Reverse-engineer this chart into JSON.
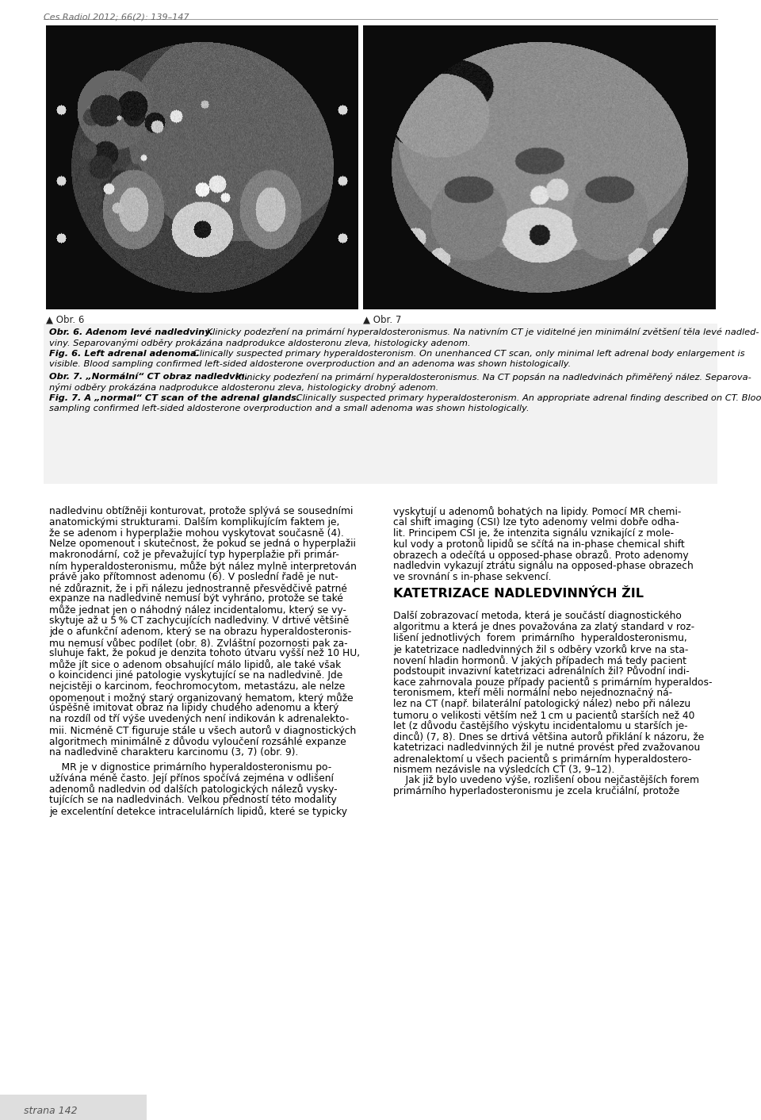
{
  "page_bg": "#ffffff",
  "header_text": "Ces Radiol 2012; 66(2): 139–147",
  "header_color": "#555555",
  "figure_left_label": "▲ Obr. 6",
  "figure_right_label": "▲ Obr. 7",
  "caption_bg": "#f2f2f2",
  "body_left_col": [
    "nadledvinu obtížněji konturovat, protože splývá se sousedními",
    "anatomickými strukturami. Dalším komplikujícím faktem je,",
    "že se adenom i hyperplažie mohou vyskytovat současně (4).",
    "Nelze opomenout i skutečnost, že pokud se jedná o hyperplažii",
    "makronodární, což je převažující typ hyperplažie při primár-",
    "ním hyperaldosteronismu, může být nález mylně interpretován",
    "právě jako přítomnost adenomu (6). V poslední řadě je nut-",
    "né zdůraznit, že i při nálezu jednostranně přesvědčivě patrné",
    "expanze na nadledvině nemusí být vyhráno, protože se také",
    "může jednat jen o náhodný nález incidentalomu, který se vy-",
    "skytuje až u 5 % CT zachycujících nadledviny. V drtivé většině",
    "jde o afunkční adenom, který se na obrazu hyperaldosteronis-",
    "mu nemusí vůbec podílet (obr. 8). Zvláštní pozornosti pak za-",
    "sluhuje fakt, že pokud je denzita tohoto útvaru vyšší než 10 HU,",
    "může jít sice o adenom obsahující málo lipidů, ale také však",
    "o koincidenci jiné patologie vyskytující se na nadledvině. Jde",
    "nejcistěji o karcinom, feochromocytom, metastázu, ale nelze",
    "opomenout i možný starý organizovaný hematom, který může",
    "úspěšně imitovat obraz na lipidy chudého adenomu a který",
    "na rozdíl od tří výše uvedených není indikován k adrenalekto-",
    "mii. Nicméně CT figuruje stále u všech autorů v diagnostických",
    "algoritmech minimálně z důvodu vyloučení rozsáhlé expanze",
    "na nadledvině charakteru karcinomu (3, 7) (obr. 9).",
    "",
    "    MR je v dignostice primárního hyperaldosteronismu po-",
    "užívána méně často. Její přínos spočívá zejména v odlišení",
    "adenomů nadledvin od dalších patologických nálezů vysky-",
    "tujících se na nadledvinách. Velkou předností této modality",
    "je excelentíní detekce intracelulárních lipidů, které se typicky"
  ],
  "body_right_col": [
    "vyskytují u adenomů bohatých na lipidy. Pomocí MR chemi-",
    "cal shift imaging (CSI) lze tyto adenomy velmi dobře odha-",
    "lit. Principem CSI je, že intenzita signálu vznikající z mole-",
    "kul vody a protonů lipidů se sčítá na in-phase chemical shift",
    "obrazech a odečítá u opposed-phase obrazů. Proto adenomy",
    "nadledvin vykazují ztrátu signálu na opposed-phase obrazech",
    "ve srovnání s in-phase sekvencí.",
    "",
    "KATETRIZACE NADLEDVINNÝCH ŽIL",
    "",
    "Další zobrazovací metoda, která je součástí diagnostického",
    "algoritmu a která je dnes považována za zlatý standard v roz-",
    "lišení jednotlivých  forem  primárního  hyperaldosteronismu,",
    "je katetrizace nadledvinných žil s odběry vzorků krve na sta-",
    "novení hladin hormonů. V jakých případech má tedy pacient",
    "podstoupit invazivní katetrizaci adrenálních žil? Původní indi-",
    "kace zahrnovala pouze případy pacientů s primárním hyperaldos-",
    "teronismem, kteří měli normální nebo nejednoznačný ná-",
    "lez na CT (např. bilaterální patologický nález) nebo při nálezu",
    "tumoru o velikosti větším než 1 cm u pacientů starších než 40",
    "let (z důvodu častějšího výskytu incidentalomu u starších je-",
    "dinců) (7, 8). Dnes se drtivá většina autorů přiklání k názoru, že",
    "katetrizaci nadledvinných žil je nutné provést před zvažovanou",
    "adrenalektomí u všech pacientů s primárním hyperaldostero-",
    "nismem nezávisle na výsledcích CT (3, 9–12).",
    "    Jak již bylo uvedeno výše, rozlišení obou nejčastějších forem",
    "primárního hyperladosteronismu je zcela kručiální, protože"
  ],
  "section_heading": "KATETRIZACE NADLEDVINNÝCH ŽIL"
}
